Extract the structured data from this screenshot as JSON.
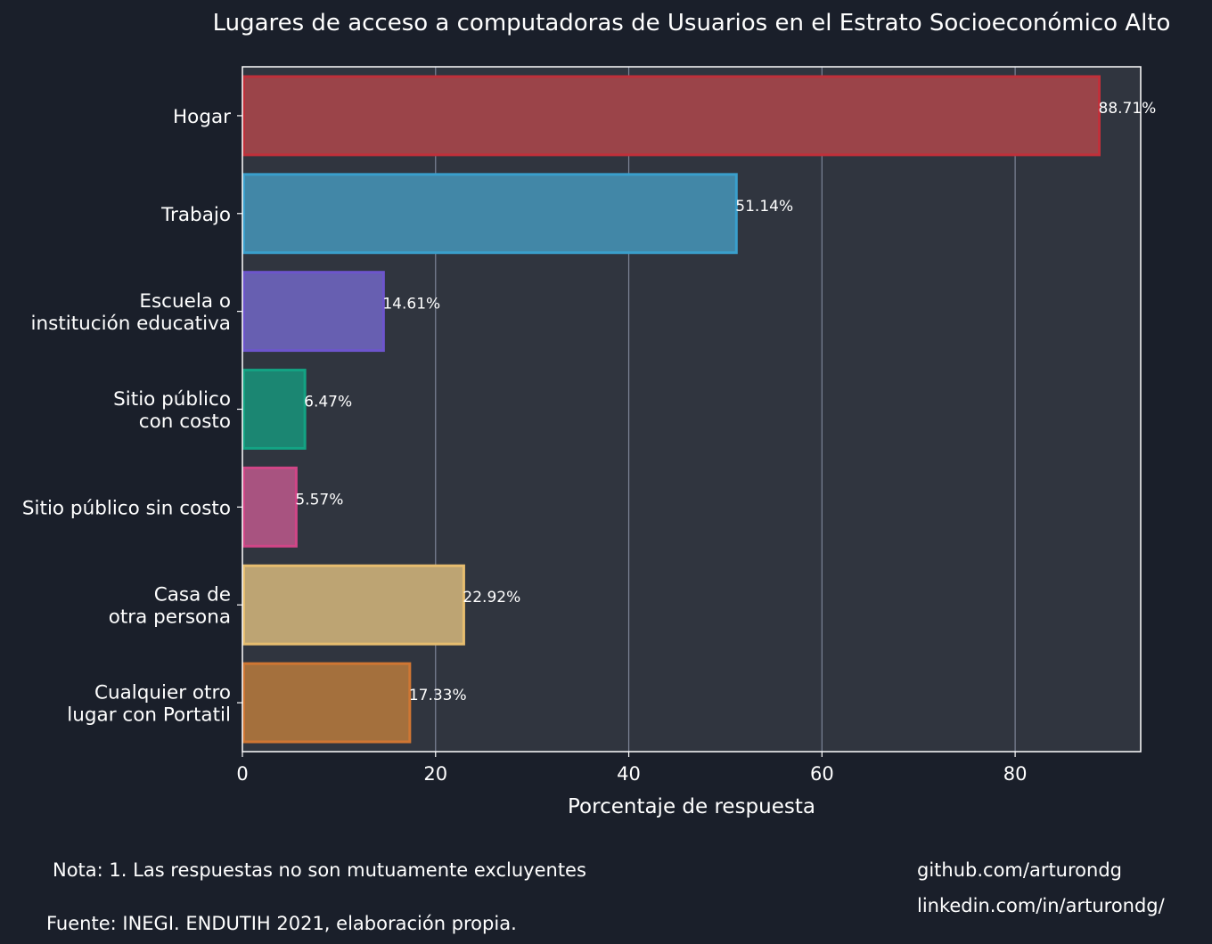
{
  "chart_data": {
    "type": "bar",
    "orientation": "horizontal",
    "title": "Lugares de acceso a computadoras de Usuarios en el Estrato Socioeconómico Alto",
    "xlabel": "Porcentaje de respuesta",
    "ylabel": "",
    "xlim": [
      0,
      93
    ],
    "xticks": [
      0,
      20,
      40,
      60,
      80
    ],
    "grid": "vertical",
    "categories": [
      [
        "Hogar"
      ],
      [
        "Trabajo"
      ],
      [
        "Escuela o",
        "institución educativa"
      ],
      [
        "Sitio público",
        "con costo"
      ],
      [
        "Sitio público sin costo"
      ],
      [
        "Casa de",
        "otra persona"
      ],
      [
        "Cualquier otro",
        "lugar con Portatil"
      ]
    ],
    "values": [
      88.71,
      51.14,
      14.61,
      6.47,
      5.57,
      22.92,
      17.33
    ],
    "value_labels": [
      "88.71%",
      "51.14%",
      "14.61%",
      "6.47%",
      "5.57%",
      "22.92%",
      "17.33%"
    ],
    "fill_colors": [
      "#9b4449",
      "#4287a7",
      "#675fb1",
      "#1b8672",
      "#a85380",
      "#bda473",
      "#a4703d"
    ],
    "edge_colors": [
      "#c0303a",
      "#3a9fcc",
      "#6d55cc",
      "#13a383",
      "#d04687",
      "#e6bd6f",
      "#cf7633"
    ]
  },
  "footer": {
    "note": "Nota: 1. Las respuestas no son mutuamente excluyentes",
    "source": "Fuente: INEGI. ENDUTIH 2021, elaboración propia.",
    "github": "github.com/arturondg",
    "linkedin": "linkedin.com/in/arturondg/"
  }
}
